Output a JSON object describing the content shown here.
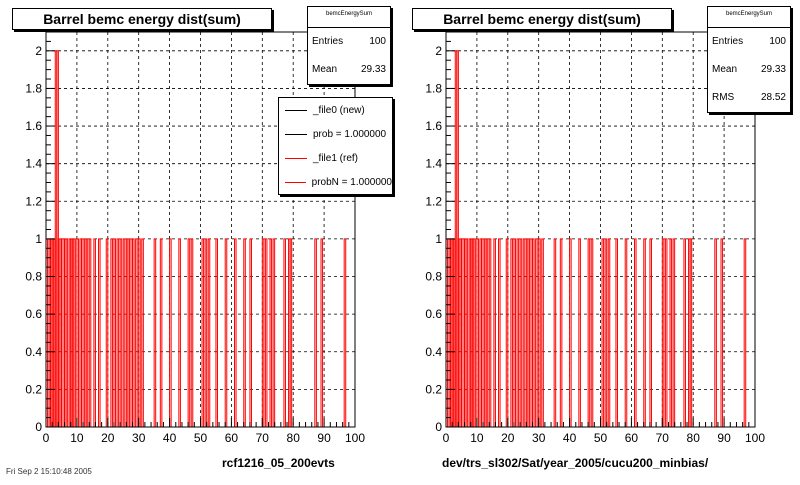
{
  "panels": [
    {
      "title": "Barrel bemc energy dist(sum)",
      "stats": {
        "name": "bemcEnergySum",
        "rows": [
          {
            "label": "Entries",
            "value": "100"
          },
          {
            "label": "Mean",
            "value": "29.33"
          }
        ]
      },
      "legend": [
        {
          "label": "_file0 (new)",
          "color": "#000000"
        },
        {
          "label": "prob = 1.000000",
          "color": "#000000"
        },
        {
          "label": "_file1 (ref)",
          "color": "#ff0000"
        },
        {
          "label": "probN = 1.000000",
          "color": "#ff0000"
        }
      ],
      "xcaption": "rcf1216_05_200evts"
    },
    {
      "title": "Barrel bemc energy dist(sum)",
      "stats": {
        "name": "bemcEnergySum",
        "rows": [
          {
            "label": "Entries",
            "value": "100"
          },
          {
            "label": "Mean",
            "value": "29.33"
          },
          {
            "label": "RMS",
            "value": "28.52"
          }
        ]
      },
      "legend": [],
      "xcaption": "dev/trs_sl302/Sat/year_2005/cucu200_minbias/"
    }
  ],
  "footer_note": "Fri Sep 2 15:10:48 2005",
  "chart_data": {
    "type": "bar",
    "xlim": [
      0,
      100
    ],
    "ylim": [
      0,
      2.1
    ],
    "xticks": [
      0,
      10,
      20,
      30,
      40,
      50,
      60,
      70,
      80,
      90,
      100
    ],
    "yticks": [
      0,
      0.2,
      0.4,
      0.6,
      0.8,
      1,
      1.2,
      1.4,
      1.6,
      1.8,
      2
    ],
    "grid": true,
    "bin_width": 0.5,
    "bins": [
      {
        "x": 0.5,
        "y": 1
      },
      {
        "x": 1.0,
        "y": 1
      },
      {
        "x": 1.5,
        "y": 1
      },
      {
        "x": 2.0,
        "y": 1
      },
      {
        "x": 2.5,
        "y": 1
      },
      {
        "x": 3.0,
        "y": 2
      },
      {
        "x": 3.5,
        "y": 2
      },
      {
        "x": 4.0,
        "y": 1
      },
      {
        "x": 4.5,
        "y": 1
      },
      {
        "x": 5.0,
        "y": 1
      },
      {
        "x": 5.5,
        "y": 1
      },
      {
        "x": 6.0,
        "y": 1
      },
      {
        "x": 6.5,
        "y": 1
      },
      {
        "x": 7.5,
        "y": 1
      },
      {
        "x": 8.0,
        "y": 1
      },
      {
        "x": 8.5,
        "y": 1
      },
      {
        "x": 9.0,
        "y": 1
      },
      {
        "x": 10.0,
        "y": 1
      },
      {
        "x": 11.0,
        "y": 1
      },
      {
        "x": 11.5,
        "y": 1
      },
      {
        "x": 12.5,
        "y": 1
      },
      {
        "x": 13.0,
        "y": 1
      },
      {
        "x": 14.0,
        "y": 1
      },
      {
        "x": 15.5,
        "y": 1
      },
      {
        "x": 17.0,
        "y": 1
      },
      {
        "x": 19.5,
        "y": 1
      },
      {
        "x": 21.0,
        "y": 1
      },
      {
        "x": 22.0,
        "y": 1
      },
      {
        "x": 23.0,
        "y": 1
      },
      {
        "x": 24.0,
        "y": 1
      },
      {
        "x": 25.0,
        "y": 1
      },
      {
        "x": 26.0,
        "y": 1
      },
      {
        "x": 26.5,
        "y": 1
      },
      {
        "x": 27.5,
        "y": 1
      },
      {
        "x": 28.0,
        "y": 1
      },
      {
        "x": 29.0,
        "y": 1
      },
      {
        "x": 30.0,
        "y": 1
      },
      {
        "x": 31.0,
        "y": 1
      },
      {
        "x": 35.0,
        "y": 1
      },
      {
        "x": 37.0,
        "y": 1
      },
      {
        "x": 40.0,
        "y": 1
      },
      {
        "x": 43.0,
        "y": 1
      },
      {
        "x": 46.0,
        "y": 1
      },
      {
        "x": 47.0,
        "y": 1
      },
      {
        "x": 50.5,
        "y": 1
      },
      {
        "x": 51.5,
        "y": 1
      },
      {
        "x": 52.5,
        "y": 1
      },
      {
        "x": 55.0,
        "y": 1
      },
      {
        "x": 58.0,
        "y": 1
      },
      {
        "x": 61.0,
        "y": 1
      },
      {
        "x": 64.0,
        "y": 1
      },
      {
        "x": 66.0,
        "y": 1
      },
      {
        "x": 70.0,
        "y": 1
      },
      {
        "x": 71.0,
        "y": 1
      },
      {
        "x": 72.5,
        "y": 1
      },
      {
        "x": 73.5,
        "y": 1
      },
      {
        "x": 77.0,
        "y": 1
      },
      {
        "x": 78.5,
        "y": 1
      },
      {
        "x": 79.0,
        "y": 1
      },
      {
        "x": 87.0,
        "y": 1
      },
      {
        "x": 89.0,
        "y": 1
      },
      {
        "x": 96.5,
        "y": 1
      }
    ]
  }
}
